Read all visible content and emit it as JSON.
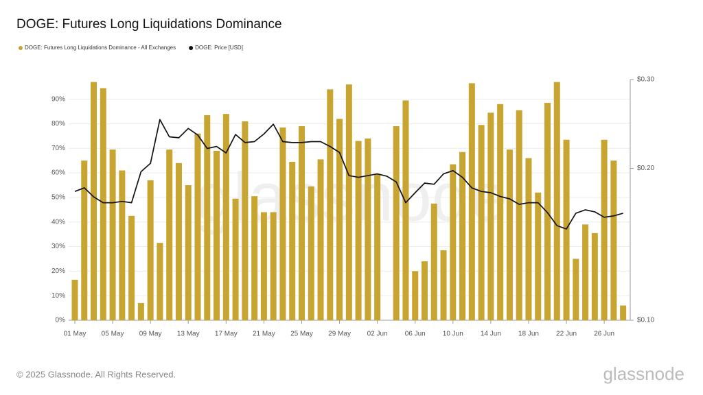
{
  "chart_data": {
    "type": "bar_line",
    "title": "DOGE: Futures Long Liquidations Dominance",
    "watermark": "glassnode",
    "footer": "© 2025 Glassnode. All Rights Reserved.",
    "logo": "glassnode",
    "categories": [
      "01 May",
      null,
      null,
      null,
      "05 May",
      null,
      null,
      null,
      "09 May",
      null,
      null,
      null,
      "13 May",
      null,
      null,
      null,
      "17 May",
      null,
      null,
      null,
      "21 May",
      null,
      null,
      null,
      "25 May",
      null,
      null,
      null,
      "29 May",
      null,
      null,
      null,
      "02 Jun",
      null,
      null,
      null,
      "06 Jun",
      null,
      null,
      null,
      "10 Jun",
      null,
      null,
      null,
      "14 Jun",
      null,
      null,
      null,
      "18 Jun",
      null,
      null,
      null,
      "22 Jun",
      null,
      null,
      null,
      "26 Jun",
      null,
      null
    ],
    "series": [
      {
        "name": "DOGE: Futures Long Liquidations Dominance - All Exchanges",
        "type": "bar",
        "color": "#c8a530",
        "axis": "y",
        "values": [
          16.5,
          65,
          97,
          94.5,
          69.5,
          61,
          42.5,
          7,
          57,
          31.5,
          69.5,
          64,
          55,
          76,
          83.5,
          69,
          84,
          49.5,
          81,
          50.5,
          44,
          44,
          78.5,
          64.5,
          79,
          54.5,
          65.5,
          94,
          82,
          96,
          73,
          74,
          59.5,
          null,
          79,
          89.5,
          20,
          24,
          47.5,
          28.5,
          63.5,
          68.5,
          96.5,
          79.5,
          84.5,
          88,
          69.5,
          85.5,
          66,
          52,
          88.5,
          97,
          73.5,
          25,
          39,
          35.5,
          73.5,
          65,
          6
        ]
      },
      {
        "name": "DOGE: Price [USD]",
        "type": "line",
        "color": "#111111",
        "axis": "y2",
        "values": [
          0.18,
          0.183,
          0.1756,
          0.171,
          0.171,
          0.172,
          0.171,
          0.197,
          0.2047,
          0.25,
          0.231,
          0.23,
          0.24,
          0.233,
          0.219,
          0.221,
          0.2146,
          0.2335,
          0.225,
          0.226,
          0.234,
          0.2447,
          0.226,
          0.225,
          0.225,
          0.226,
          0.226,
          0.221,
          0.215,
          0.1935,
          0.192,
          0.1935,
          0.195,
          0.193,
          0.188,
          0.171,
          0.179,
          0.187,
          0.186,
          0.195,
          0.198,
          0.192,
          0.183,
          0.18,
          0.179,
          0.176,
          0.174,
          0.1697,
          0.171,
          0.171,
          0.1634,
          0.154,
          0.1517,
          0.163,
          0.1655,
          0.164,
          0.16,
          0.161,
          0.163
        ]
      }
    ],
    "ylim": [
      0,
      98
    ],
    "yticks": [
      {
        "value": 0,
        "label": "0%"
      },
      {
        "value": 10,
        "label": "10%"
      },
      {
        "value": 20,
        "label": "20%"
      },
      {
        "value": 30,
        "label": "30%"
      },
      {
        "value": 40,
        "label": "40%"
      },
      {
        "value": 50,
        "label": "50%"
      },
      {
        "value": 60,
        "label": "60%"
      },
      {
        "value": 70,
        "label": "70%"
      },
      {
        "value": 80,
        "label": "80%"
      },
      {
        "value": 90,
        "label": "90%"
      }
    ],
    "y2lim": [
      0.1,
      0.3
    ],
    "y2ticks": [
      {
        "value": 0.1,
        "label": "$0.10"
      },
      {
        "value": 0.2,
        "label": "$0.20"
      },
      {
        "value": 0.3,
        "label": "$0.30"
      }
    ],
    "y2_log": true,
    "grid": true
  }
}
